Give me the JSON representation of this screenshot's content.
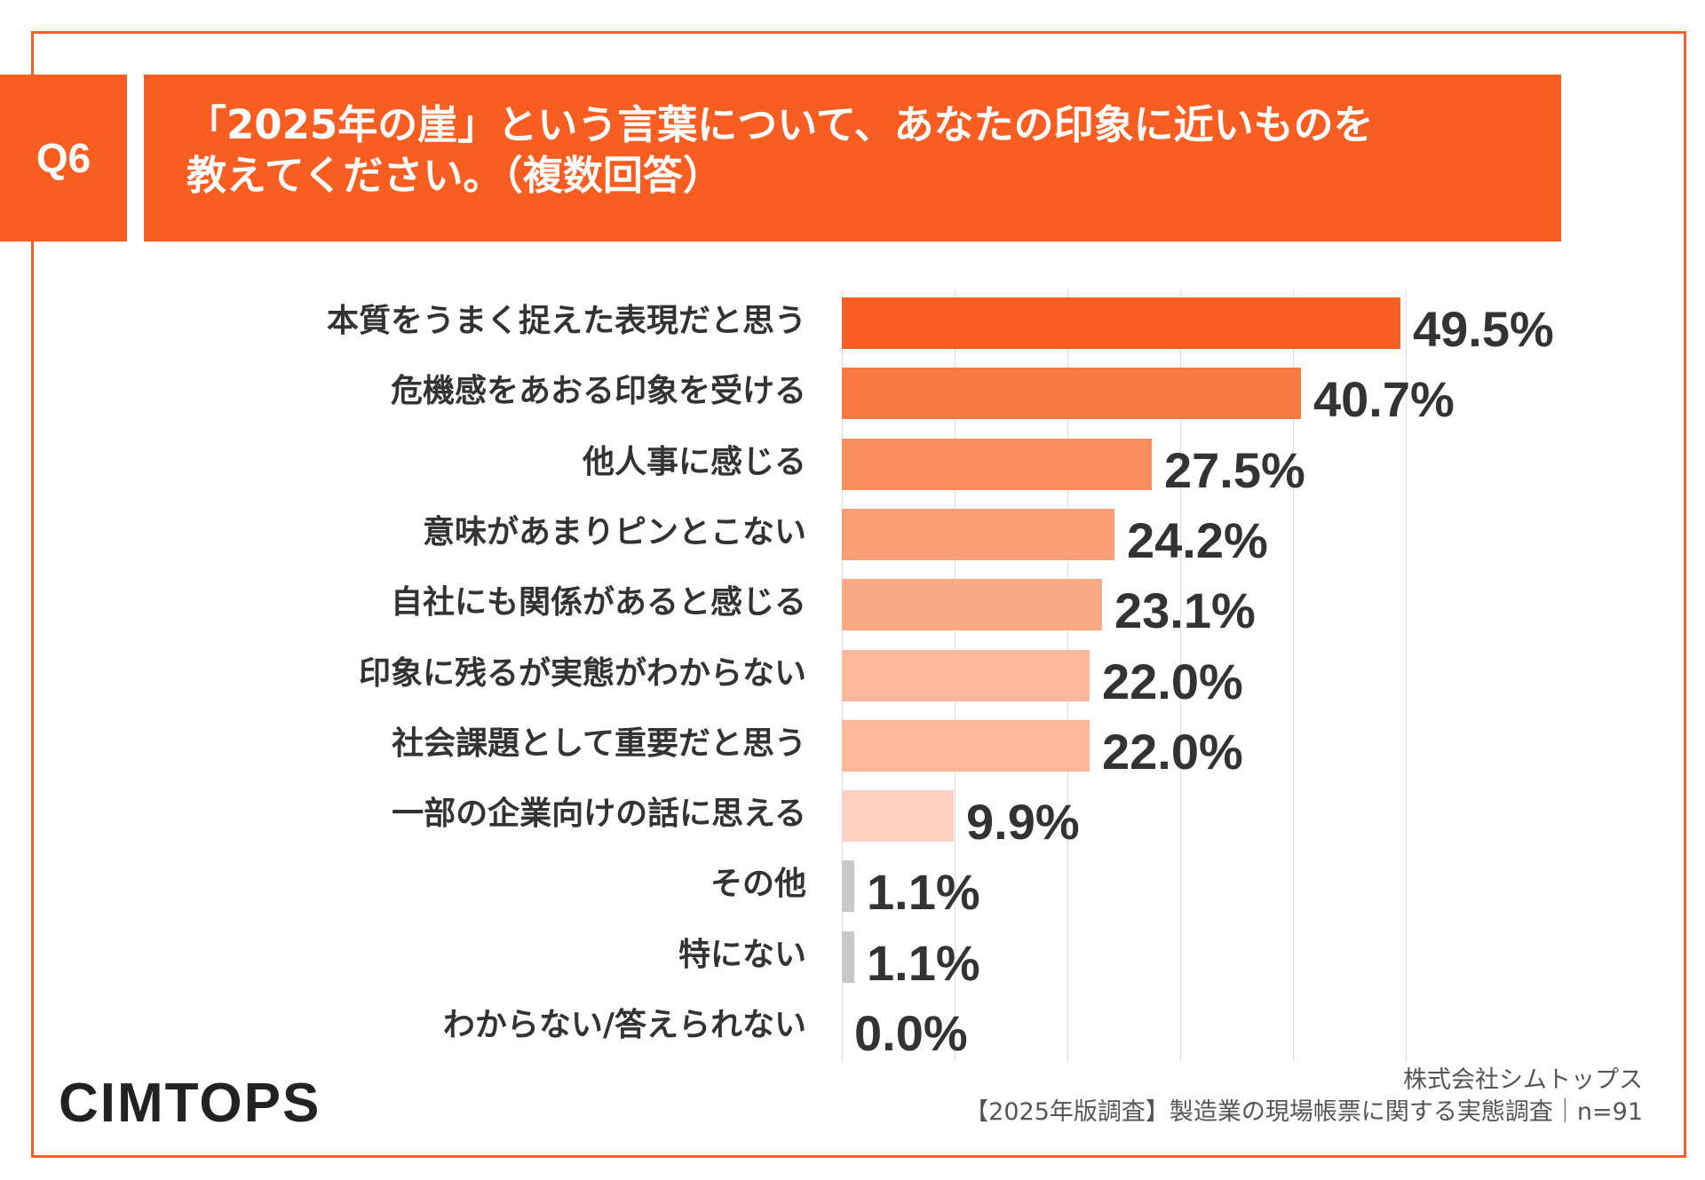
{
  "question": {
    "number": "Q6",
    "text_line1": "「2025年の崖」という言葉について、あなたの印象に近いものを",
    "text_line2": "教えてください。（複数回答）"
  },
  "chart_data": {
    "type": "bar",
    "orientation": "horizontal",
    "title": "「2025年の崖」という言葉について、あなたの印象に近いものを教えてください。（複数回答）",
    "unit": "%",
    "xlim": [
      0,
      50
    ],
    "grid": true,
    "categories": [
      "本質をうまく捉えた表現だと思う",
      "危機感をあおる印象を受ける",
      "他人事に感じる",
      "意味があまりピンとこない",
      "自社にも関係があると感じる",
      "印象に残るが実態がわからない",
      "社会課題として重要だと思う",
      "一部の企業向けの話に思える",
      "その他",
      "特にない",
      "わからない/答えられない"
    ],
    "values": [
      49.5,
      40.7,
      27.5,
      24.2,
      23.1,
      22.0,
      22.0,
      9.9,
      1.1,
      1.1,
      0.0
    ],
    "value_labels": [
      "49.5%",
      "40.7%",
      "27.5%",
      "24.2%",
      "23.1%",
      "22.0%",
      "22.0%",
      "9.9%",
      "1.1%",
      "1.1%",
      "0.0%"
    ],
    "bar_colors": [
      "#f85e22",
      "#f97a45",
      "#fa8d5d",
      "#fb9e75",
      "#fca985",
      "#fdb79a",
      "#fdb79a",
      "#fdd0bf",
      "#c8c8c8",
      "#c8c8c8",
      "#c8c8c8"
    ]
  },
  "logo": {
    "text": "CIMTOPS"
  },
  "credit": {
    "company": "株式会社シムトップス",
    "survey": "【2025年版調査】製造業の現場帳票に関する実態調査｜n=91"
  },
  "colors": {
    "accent": "#f85e22",
    "frame": "#f0622a",
    "logo_dot": "#e60012"
  }
}
